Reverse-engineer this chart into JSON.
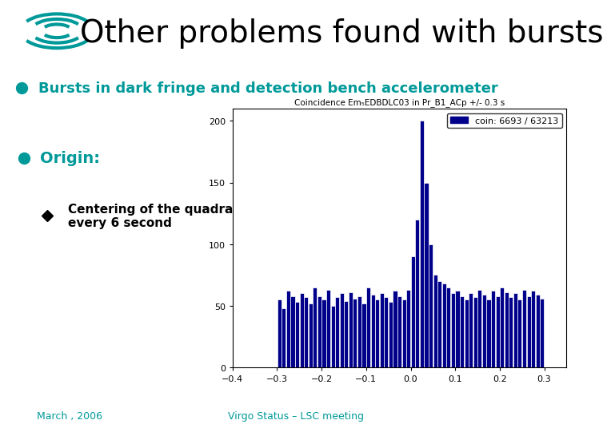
{
  "title": "Other problems found with bursts",
  "title_fontsize": 28,
  "title_color": "#000000",
  "background_color": "#ffffff",
  "header_bar_color": "#6600aa",
  "teal_color": "#009999",
  "bullet1": "Bursts in dark fringe and detection bench accelerometer",
  "bullet2": "Origin:",
  "sub_bullet": "Centering of the quadrant\nevery 6 second",
  "footer_left": "March , 2006",
  "footer_right": "Virgo Status – LSC meeting",
  "plot_title": "Coincidence Em₅EDBDLC03 in Pr_B1_ACp +/- 0.3 s",
  "legend_label": "coin: 6693 / 63213",
  "bar_color": "#00008B",
  "bar_edge_color": "#ffffff",
  "xlim": [
    -0.4,
    0.35
  ],
  "ylim": [
    0,
    210
  ],
  "xticks": [
    -0.4,
    -0.3,
    -0.2,
    -0.1,
    0.0,
    0.1,
    0.2,
    0.3
  ],
  "yticks": [
    0,
    50,
    100,
    150,
    200
  ],
  "logo_color": "#009999",
  "bar_heights": [
    55,
    48,
    62,
    58,
    53,
    60,
    57,
    52,
    65,
    58,
    55,
    63,
    50,
    57,
    60,
    54,
    61,
    56,
    58,
    52,
    65,
    59,
    55,
    60,
    57,
    53,
    62,
    58,
    55,
    63,
    90,
    120,
    200,
    150,
    100,
    75,
    70,
    68,
    65,
    60,
    62,
    58,
    55,
    60,
    57,
    63,
    59,
    55,
    62,
    58,
    65,
    61,
    57,
    60,
    55,
    63,
    58,
    62,
    59,
    56
  ]
}
